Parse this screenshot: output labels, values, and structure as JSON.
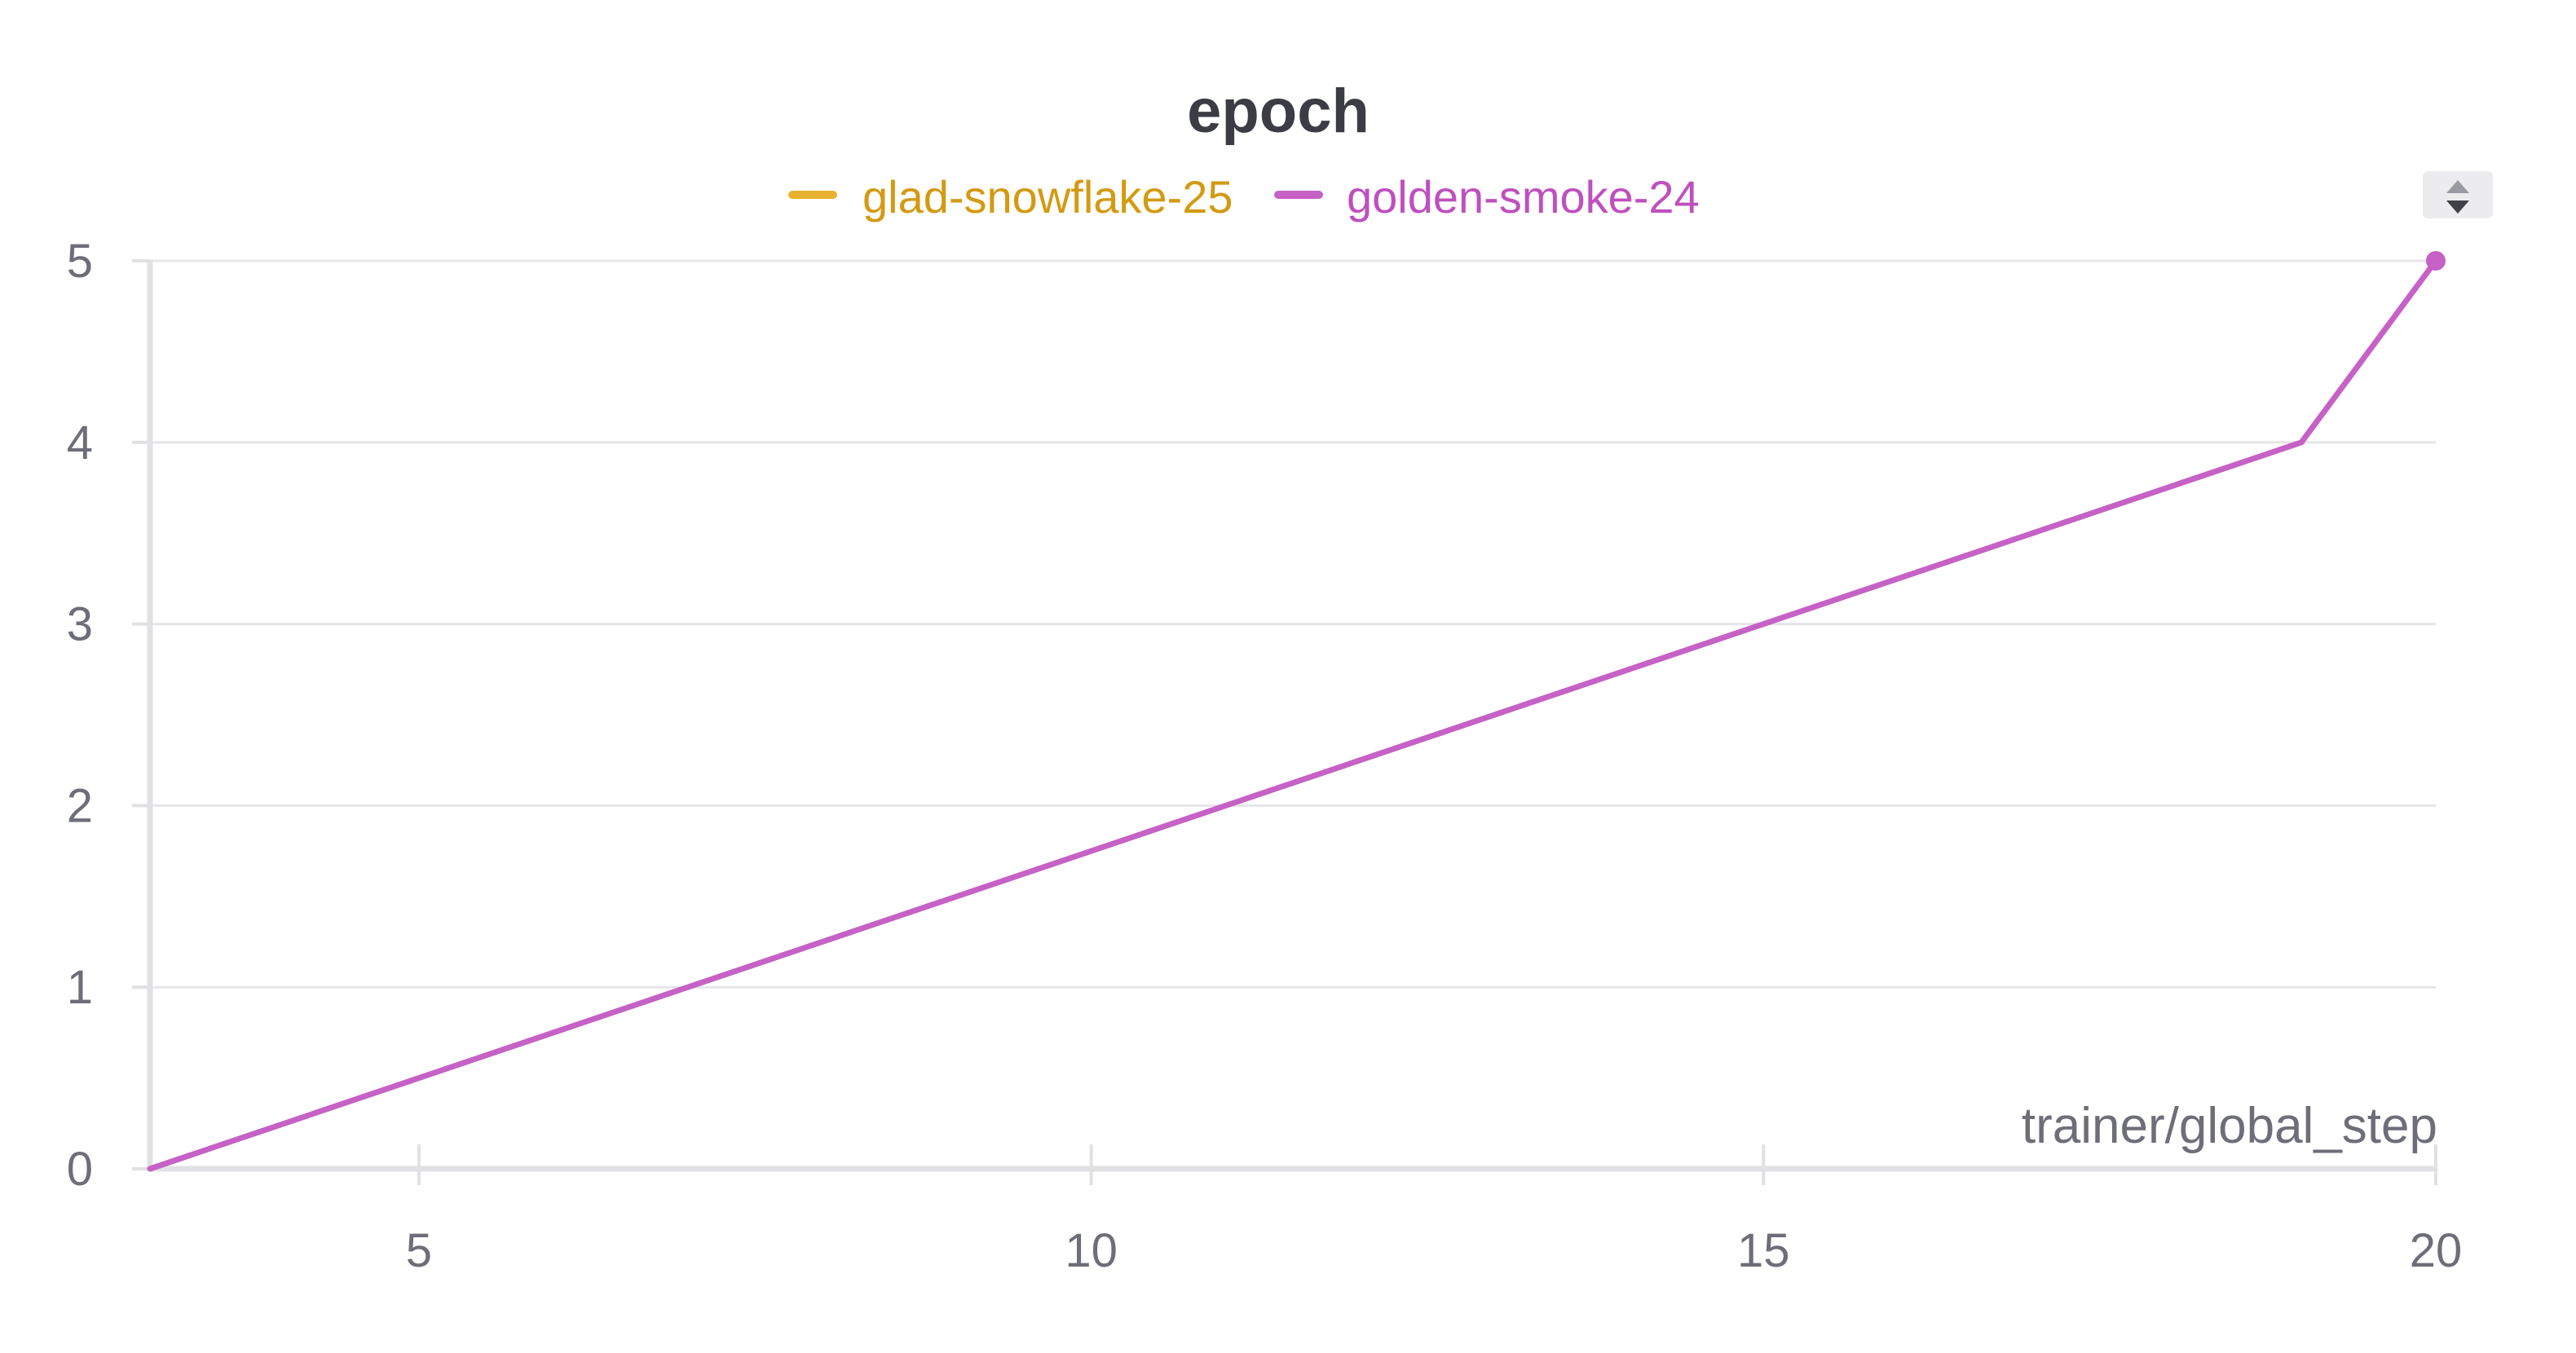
{
  "chart_data": {
    "type": "line",
    "title": "epoch",
    "xlabel": "trainer/global_step",
    "ylabel": "",
    "xlim": [
      3,
      20
    ],
    "ylim": [
      0,
      5
    ],
    "x_ticks": [
      5,
      10,
      15,
      20
    ],
    "y_ticks": [
      0,
      1,
      2,
      3,
      4,
      5
    ],
    "grid": "horizontal",
    "legend_position": "top-center",
    "series": [
      {
        "name": "glad-snowflake-25",
        "color": "#e8b22e",
        "label_color": "#d39a12",
        "x": [],
        "y": []
      },
      {
        "name": "golden-smoke-24",
        "color": "#c661c6",
        "label_color": "#bf4fbf",
        "x": [
          3,
          19,
          20
        ],
        "y": [
          0,
          4,
          5
        ],
        "end_marker": true
      }
    ]
  },
  "controls": {
    "legend_scroll_icon": "up-down-arrows-icon"
  }
}
